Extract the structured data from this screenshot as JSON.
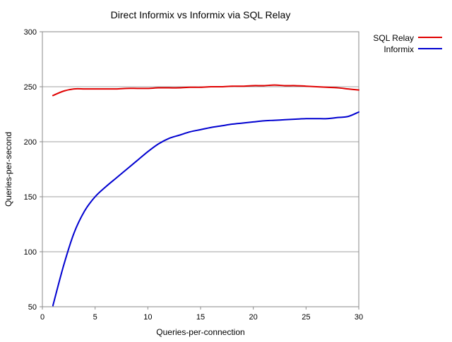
{
  "chart_data": {
    "type": "line",
    "title": "Direct Informix vs Informix via SQL Relay",
    "xlabel": "Queries-per-connection",
    "ylabel": "Queries-per-second",
    "xlim": [
      0,
      30
    ],
    "ylim": [
      50,
      300
    ],
    "x_ticks": [
      0,
      5,
      10,
      15,
      20,
      25,
      30
    ],
    "y_ticks": [
      50,
      100,
      150,
      200,
      250,
      300
    ],
    "grid": {
      "horizontal": true,
      "vertical": false,
      "color": "#a0a0a0"
    },
    "legend": {
      "placement": "top-right-outside"
    },
    "series": [
      {
        "name": "SQL Relay",
        "color": "#e00000",
        "x": [
          1,
          2,
          3,
          4,
          5,
          6,
          7,
          8,
          9,
          10,
          11,
          12,
          13,
          14,
          15,
          16,
          17,
          18,
          19,
          20,
          21,
          22,
          23,
          24,
          25,
          26,
          27,
          28,
          29,
          30
        ],
        "y": [
          242,
          246,
          248,
          248,
          248,
          248,
          248,
          248.5,
          248.5,
          248.5,
          249,
          249,
          249,
          249.5,
          249.5,
          250,
          250,
          250.5,
          250.5,
          251,
          251,
          251.5,
          251,
          251,
          250.5,
          250,
          249.5,
          249,
          248,
          247
        ]
      },
      {
        "name": "Informix",
        "color": "#0000d0",
        "x": [
          1,
          2,
          3,
          4,
          5,
          6,
          7,
          8,
          9,
          10,
          11,
          12,
          13,
          14,
          15,
          16,
          17,
          18,
          19,
          20,
          21,
          22,
          23,
          24,
          25,
          26,
          27,
          28,
          29,
          30
        ],
        "y": [
          51,
          87,
          117,
          137,
          150,
          159,
          167,
          175,
          183,
          191,
          198,
          203,
          206,
          209,
          211,
          213,
          214.5,
          216,
          217,
          218,
          219,
          219.5,
          220,
          220.5,
          221,
          221,
          221,
          222,
          223,
          227
        ]
      }
    ]
  }
}
